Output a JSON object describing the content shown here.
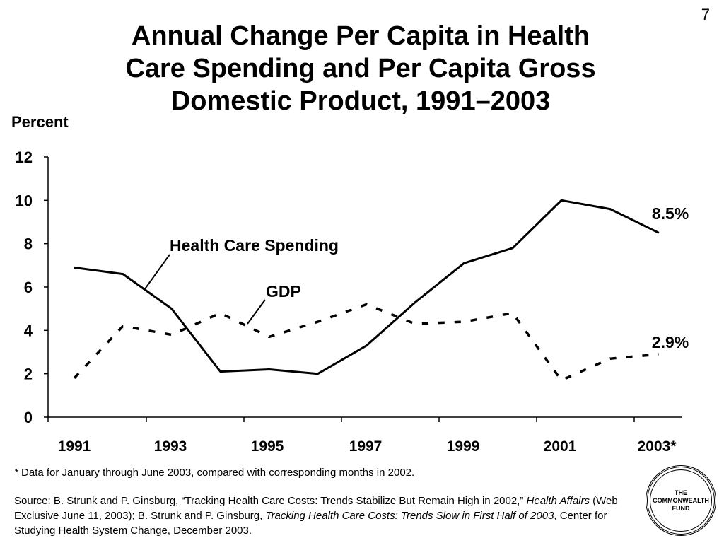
{
  "page_number": "7",
  "chart_data": {
    "type": "line",
    "title": "Annual Change Per Capita in Health\nCare Spending and Per Capita Gross\nDomestic Product, 1991–2003",
    "ylabel": "Percent",
    "xlabel": "",
    "x": [
      1991,
      1992,
      1993,
      1994,
      1995,
      1996,
      1997,
      1998,
      1999,
      2000,
      2001,
      2002,
      2003
    ],
    "x_tick_labels": [
      "1991",
      "1993",
      "1995",
      "1997",
      "1999",
      "2001",
      "2003*"
    ],
    "ylim": [
      0,
      12
    ],
    "y_ticks": [
      0,
      2,
      4,
      6,
      8,
      10,
      12
    ],
    "grid": false,
    "series": [
      {
        "name": "Health Care Spending",
        "style": "solid",
        "color": "#000000",
        "values": [
          6.9,
          6.6,
          5.0,
          2.1,
          2.2,
          2.0,
          3.3,
          5.3,
          7.1,
          7.8,
          10.0,
          9.6,
          8.5
        ],
        "end_label": "8.5%"
      },
      {
        "name": "GDP",
        "style": "dotted",
        "color": "#000000",
        "values": [
          1.8,
          4.2,
          3.8,
          4.8,
          3.7,
          4.4,
          5.2,
          4.3,
          4.4,
          4.8,
          1.7,
          2.7,
          2.9
        ],
        "end_label": "2.9%"
      }
    ]
  },
  "footnote": {
    "marker": "*",
    "text": "Data for January through June 2003, compared with corresponding months in 2002."
  },
  "source": {
    "part1": "Source: B. Strunk and P. Ginsburg, “Tracking Health Care Costs: Trends Stabilize But Remain High in 2002,” ",
    "journal": "Health Affairs",
    "part2": " (Web Exclusive June 11, 2003); B. Strunk and P. Ginsburg, ",
    "report": "Tracking Health Care Costs: Trends Slow in First Half of 2003",
    "part3": ", Center for Studying Health System Change, December 2003."
  },
  "logo": {
    "text": "THE\nCOMMONWEALTH\nFUND"
  }
}
